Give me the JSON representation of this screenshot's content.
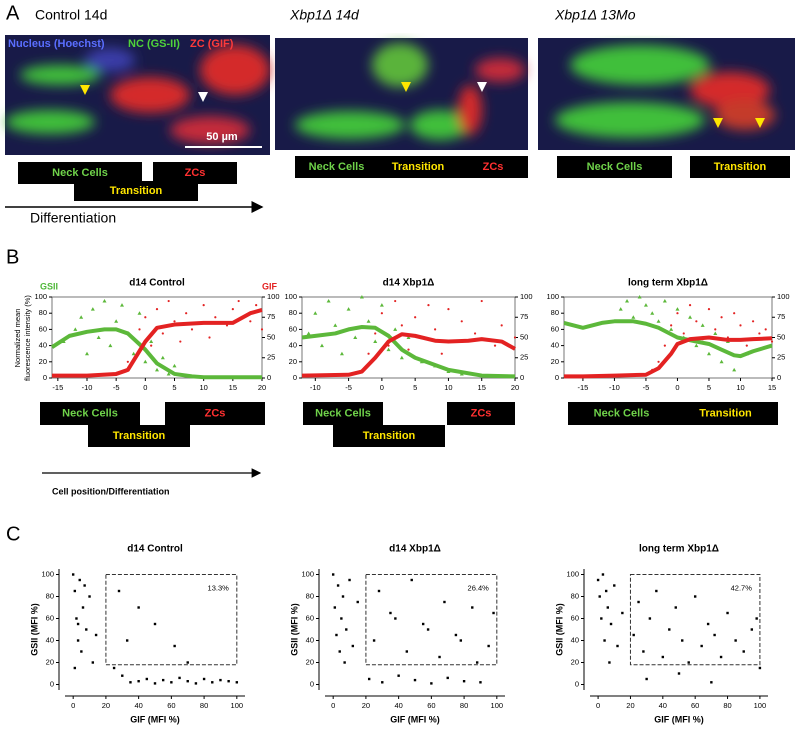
{
  "panel_a": {
    "label": "A",
    "legend": [
      "Nucleus (Hoechst)",
      "NC (GS-II)",
      "ZC (GIF)"
    ],
    "scale_bar": "50 µm",
    "arrow_label": "Differentiation",
    "images": [
      {
        "title": "Control 14d",
        "stages": [
          "Neck Cells",
          "Transition",
          "ZCs"
        ]
      },
      {
        "title": "Xbp1Δ 14d",
        "stages": [
          "Neck Cells",
          "Transition",
          "ZCs"
        ]
      },
      {
        "title": "Xbp1Δ 13Mo",
        "stages": [
          "Neck Cells",
          "Transition"
        ]
      }
    ]
  },
  "panel_b": {
    "label": "B",
    "left_label": "GSII",
    "right_label": "GIF",
    "y_label": [
      "Normalized mean",
      "fluorescence intensity (%)"
    ],
    "arrow_label": "Cell position/Differentiation",
    "stages": [
      [
        "Neck Cells",
        "Transition",
        "ZCs"
      ],
      [
        "Neck Cells",
        "Transition",
        "ZCs"
      ],
      [
        "Neck Cells",
        "Transition"
      ]
    ],
    "charts": [
      {
        "type": "line",
        "title": "d14 Control",
        "xlim": [
          -16,
          20
        ],
        "xticks": [
          -15,
          -10,
          -5,
          0,
          5,
          10,
          15,
          20
        ],
        "ylim": [
          0,
          100
        ],
        "yticks": [
          0,
          20,
          40,
          60,
          80,
          100
        ],
        "y2lim": [
          0,
          100
        ],
        "y2ticks": [
          0,
          25,
          50,
          75,
          100
        ],
        "series": [
          {
            "color": "#5cb83a",
            "x": [
              -16,
              -13,
              -10,
              -7,
              -5,
              -3,
              0,
              2,
              5,
              8,
              10,
              15,
              20
            ],
            "values": [
              38,
              52,
              57,
              60,
              60,
              55,
              35,
              18,
              5,
              2,
              1,
              1,
              1
            ]
          },
          {
            "color": "#e32222",
            "axis": "y2",
            "x": [
              -16,
              -10,
              -5,
              -3,
              0,
              2,
              5,
              10,
              15,
              18,
              20
            ],
            "values": [
              3,
              3,
              5,
              10,
              45,
              62,
              66,
              68,
              68,
              80,
              84
            ]
          }
        ],
        "points": [
          {
            "color": "#5cb83a",
            "x": [
              -14,
              -12,
              -11,
              -10,
              -9,
              -8,
              -7,
              -6,
              -5,
              -4,
              -3,
              -2,
              -1,
              0,
              1,
              2,
              3,
              4,
              5,
              7
            ],
            "values": [
              45,
              60,
              75,
              30,
              85,
              50,
              95,
              40,
              70,
              90,
              55,
              30,
              80,
              20,
              45,
              10,
              25,
              5,
              15,
              3
            ]
          },
          {
            "color": "#e32222",
            "axis": "y2",
            "x": [
              -3,
              -1,
              0,
              1,
              2,
              3,
              4,
              5,
              6,
              7,
              8,
              10,
              11,
              12,
              14,
              15,
              16,
              18,
              19,
              20
            ],
            "values": [
              20,
              60,
              75,
              40,
              85,
              55,
              95,
              70,
              45,
              80,
              60,
              90,
              50,
              75,
              65,
              85,
              95,
              70,
              90,
              60
            ]
          }
        ]
      },
      {
        "type": "line",
        "title": "d14 Xbp1Δ",
        "xlim": [
          -12,
          20
        ],
        "xticks": [
          -10,
          -5,
          0,
          5,
          10,
          15,
          20
        ],
        "ylim": [
          0,
          100
        ],
        "yticks": [
          0,
          20,
          40,
          60,
          80,
          100
        ],
        "y2lim": [
          0,
          100
        ],
        "y2ticks": [
          0,
          25,
          50,
          75,
          100
        ],
        "series": [
          {
            "color": "#5cb83a",
            "x": [
              -12,
              -10,
              -7,
              -5,
              -3,
              -1,
              1,
              3,
              5,
              10,
              15,
              20
            ],
            "values": [
              50,
              52,
              55,
              60,
              63,
              62,
              52,
              35,
              25,
              10,
              3,
              2
            ]
          },
          {
            "color": "#e32222",
            "axis": "y2",
            "x": [
              -12,
              -5,
              -3,
              -1,
              1,
              3,
              5,
              8,
              10,
              13,
              15,
              18,
              20
            ],
            "values": [
              3,
              4,
              8,
              25,
              45,
              54,
              52,
              46,
              45,
              46,
              48,
              45,
              36
            ]
          }
        ],
        "points": [
          {
            "color": "#5cb83a",
            "x": [
              -11,
              -10,
              -9,
              -8,
              -7,
              -6,
              -5,
              -4,
              -3,
              -2,
              -1,
              0,
              1,
              2,
              3,
              4,
              6,
              8,
              10,
              12
            ],
            "values": [
              55,
              80,
              40,
              95,
              65,
              30,
              85,
              50,
              100,
              70,
              45,
              90,
              35,
              60,
              25,
              50,
              20,
              15,
              8,
              5
            ]
          },
          {
            "color": "#e32222",
            "axis": "y2",
            "x": [
              -2,
              -1,
              0,
              1,
              2,
              3,
              4,
              5,
              6,
              7,
              8,
              9,
              10,
              11,
              12,
              14,
              15,
              17,
              18,
              20
            ],
            "values": [
              30,
              55,
              80,
              40,
              95,
              65,
              35,
              75,
              50,
              90,
              60,
              30,
              85,
              45,
              70,
              55,
              95,
              40,
              65,
              50
            ]
          }
        ]
      },
      {
        "type": "line",
        "title": "long term Xbp1Δ",
        "xlim": [
          -18,
          15
        ],
        "xticks": [
          -15,
          -10,
          -5,
          0,
          5,
          10,
          15
        ],
        "ylim": [
          0,
          100
        ],
        "yticks": [
          0,
          20,
          40,
          60,
          80,
          100
        ],
        "y2lim": [
          0,
          100
        ],
        "y2ticks": [
          0,
          25,
          50,
          75,
          100
        ],
        "series": [
          {
            "color": "#5cb83a",
            "x": [
              -18,
              -15,
              -12,
              -10,
              -7,
              -5,
              -3,
              0,
              3,
              5,
              7,
              9,
              10,
              12,
              15
            ],
            "values": [
              68,
              62,
              68,
              70,
              70,
              67,
              62,
              50,
              45,
              42,
              35,
              28,
              27,
              33,
              40
            ]
          },
          {
            "color": "#e32222",
            "axis": "y2",
            "x": [
              -18,
              -15,
              -10,
              -5,
              -3,
              -1,
              0,
              2,
              5,
              8,
              10,
              12,
              15
            ],
            "values": [
              2,
              2,
              3,
              4,
              12,
              30,
              42,
              48,
              50,
              47,
              47,
              48,
              49
            ]
          }
        ],
        "points": [
          {
            "color": "#5cb83a",
            "x": [
              -9,
              -8,
              -7,
              -6,
              -5,
              -4,
              -3,
              -2,
              -1,
              0,
              1,
              2,
              3,
              4,
              5,
              6,
              7,
              8,
              9,
              11
            ],
            "values": [
              85,
              95,
              75,
              100,
              90,
              80,
              70,
              95,
              60,
              85,
              50,
              75,
              40,
              65,
              30,
              55,
              20,
              45,
              10,
              30
            ]
          },
          {
            "color": "#e32222",
            "axis": "y2",
            "x": [
              -2,
              -1,
              0,
              1,
              2,
              3,
              4,
              5,
              6,
              7,
              8,
              9,
              10,
              11,
              12,
              13,
              14,
              15,
              -3,
              -4
            ],
            "values": [
              40,
              65,
              80,
              55,
              90,
              70,
              45,
              85,
              60,
              75,
              50,
              80,
              65,
              40,
              70,
              55,
              60,
              45,
              20,
              10
            ]
          }
        ]
      }
    ]
  },
  "panel_c": {
    "label": "C",
    "charts": [
      {
        "type": "scatter",
        "title": "d14 Control",
        "x_label": "GIF (MFI %)",
        "y_label": "GSII (MFI %)",
        "xlim": [
          -5,
          105
        ],
        "ylim": [
          -5,
          105
        ],
        "xticks": [
          0,
          20,
          40,
          60,
          80,
          100
        ],
        "yticks": [
          0,
          20,
          40,
          60,
          80,
          100
        ],
        "gate": {
          "x": [
            20,
            100
          ],
          "y": [
            18,
            100
          ]
        },
        "gate_label": "13.3%",
        "x": [
          0,
          1,
          2,
          3,
          4,
          5,
          6,
          8,
          10,
          12,
          14,
          1,
          3,
          7,
          25,
          30,
          35,
          40,
          45,
          50,
          55,
          60,
          65,
          70,
          75,
          80,
          85,
          90,
          95,
          100,
          40,
          50,
          62,
          70,
          28,
          33
        ],
        "values": [
          100,
          85,
          60,
          40,
          95,
          30,
          70,
          50,
          80,
          20,
          45,
          15,
          55,
          90,
          15,
          8,
          2,
          3,
          5,
          1,
          4,
          2,
          6,
          3,
          1,
          5,
          2,
          4,
          3,
          2,
          70,
          55,
          35,
          20,
          85,
          40
        ]
      },
      {
        "type": "scatter",
        "title": "d14 Xbp1Δ",
        "x_label": "GIF (MFI %)",
        "y_label": "GSII (MFI %)",
        "xlim": [
          -5,
          105
        ],
        "ylim": [
          -5,
          105
        ],
        "xticks": [
          0,
          20,
          40,
          60,
          80,
          100
        ],
        "yticks": [
          0,
          20,
          40,
          60,
          80,
          100
        ],
        "gate": {
          "x": [
            20,
            100
          ],
          "y": [
            18,
            100
          ]
        },
        "gate_label": "26.4%",
        "x": [
          0,
          1,
          2,
          3,
          4,
          5,
          6,
          7,
          8,
          10,
          12,
          15,
          22,
          25,
          30,
          35,
          40,
          45,
          50,
          55,
          60,
          65,
          70,
          75,
          80,
          85,
          90,
          95,
          28,
          38,
          48,
          58,
          68,
          78,
          88,
          98
        ],
        "values": [
          100,
          70,
          45,
          90,
          30,
          60,
          80,
          20,
          50,
          95,
          35,
          75,
          5,
          40,
          2,
          65,
          8,
          30,
          4,
          55,
          1,
          25,
          6,
          45,
          3,
          70,
          2,
          35,
          85,
          60,
          95,
          50,
          75,
          40,
          20,
          65
        ]
      },
      {
        "type": "scatter",
        "title": "long term Xbp1Δ",
        "x_label": "GIF (MFI %)",
        "y_label": "GSII (MFI %)",
        "xlim": [
          -5,
          105
        ],
        "ylim": [
          -5,
          105
        ],
        "xticks": [
          0,
          20,
          40,
          60,
          80,
          100
        ],
        "yticks": [
          0,
          20,
          40,
          60,
          80,
          100
        ],
        "gate": {
          "x": [
            20,
            100
          ],
          "y": [
            18,
            100
          ]
        },
        "gate_label": "42.7%",
        "x": [
          0,
          1,
          2,
          3,
          4,
          5,
          6,
          7,
          8,
          10,
          12,
          15,
          22,
          25,
          28,
          32,
          36,
          40,
          44,
          48,
          52,
          56,
          60,
          64,
          68,
          72,
          76,
          80,
          85,
          90,
          95,
          100,
          30,
          50,
          70,
          98
        ],
        "values": [
          95,
          80,
          60,
          100,
          40,
          85,
          70,
          20,
          55,
          90,
          35,
          65,
          45,
          75,
          30,
          60,
          85,
          25,
          50,
          70,
          40,
          20,
          80,
          35,
          55,
          45,
          25,
          65,
          40,
          30,
          50,
          15,
          5,
          10,
          2,
          60
        ]
      }
    ]
  }
}
